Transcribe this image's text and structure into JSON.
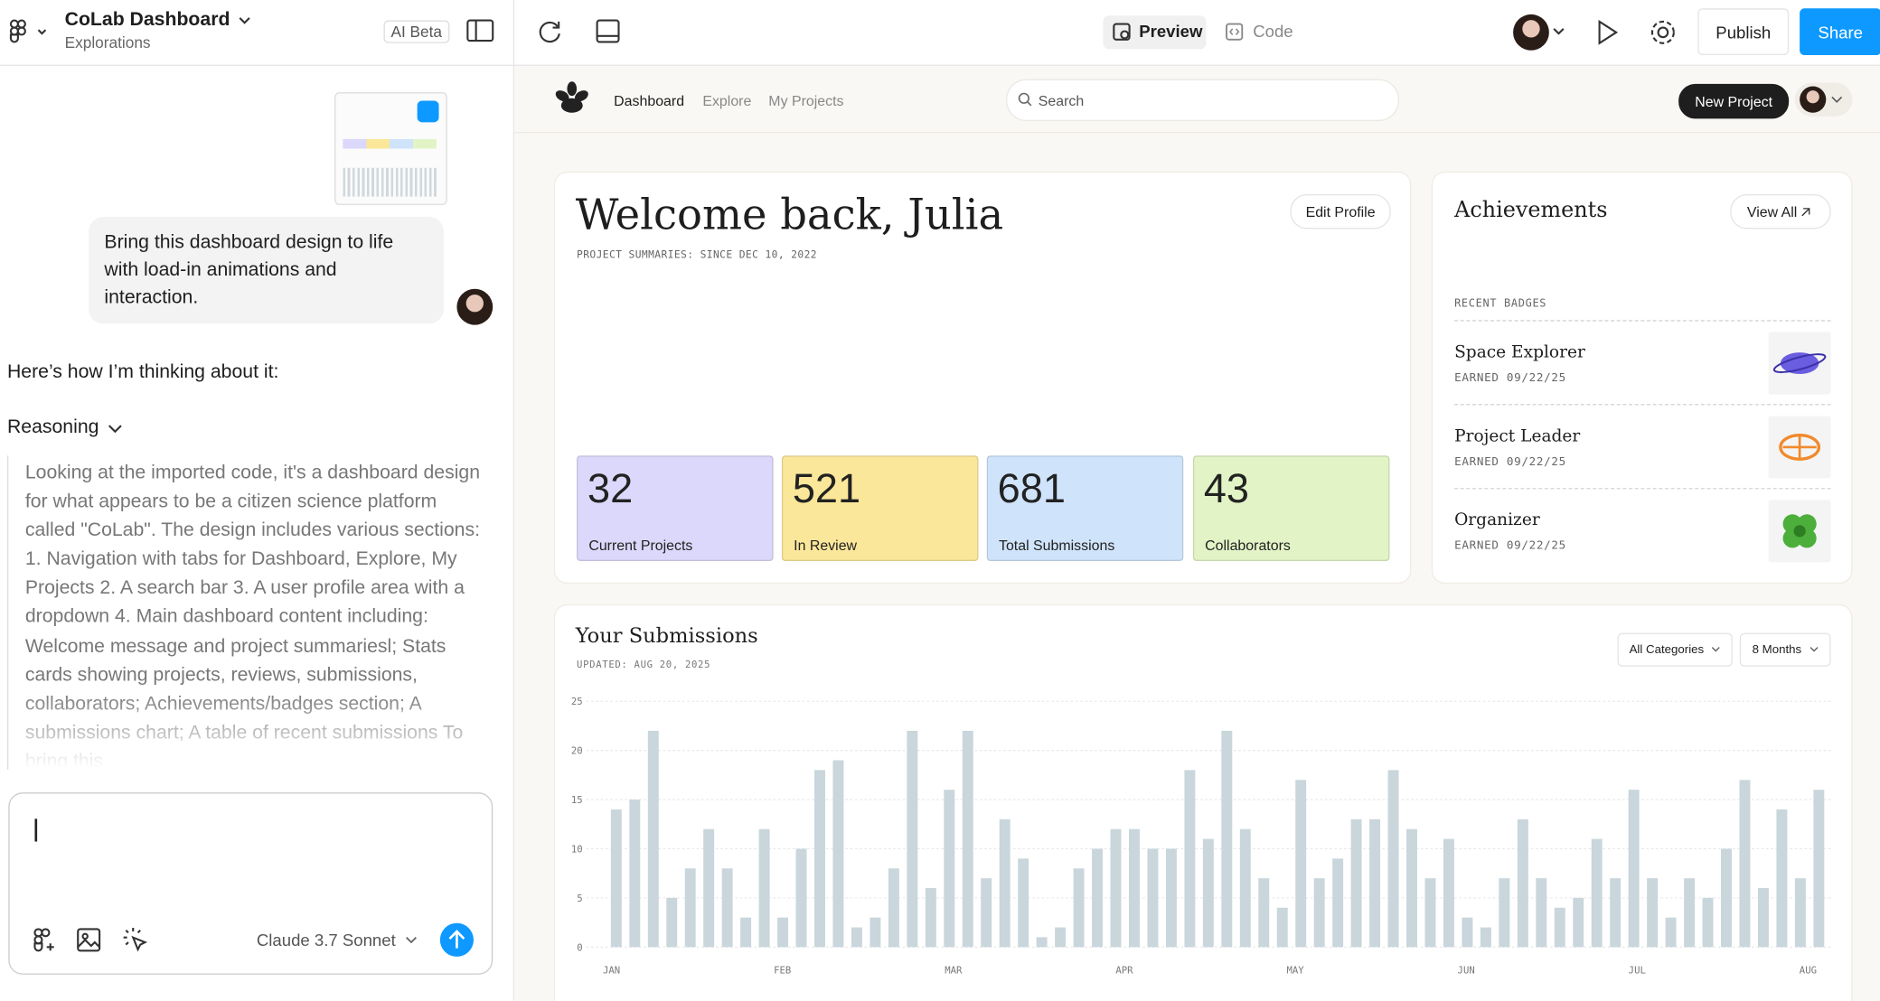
{
  "app_bar": {
    "file_title": "CoLab Dashboard",
    "file_subtitle": "Explorations",
    "ai_badge": "AI Beta",
    "preview": "Preview",
    "code": "Code",
    "publish": "Publish",
    "share": "Share"
  },
  "chat": {
    "user_message": "Bring this dashboard design to life with load-in animations and interaction.",
    "reply_intro": "Here’s how I’m thinking about it:",
    "reasoning_label": "Reasoning",
    "reasoning_text": "Looking at the imported code, it's a dashboard design for what appears to be a citizen science platform called \"CoLab\". The design includes various sections: 1. Navigation with tabs for Dashboard, Explore, My Projects 2. A search bar 3. A user profile area with a dropdown 4. Main dashboard content including: Welcome message and project summariesl; Stats cards showing projects, reviews, submissions, collaborators; Achievements/badges section; A submissions chart; A table of recent submissions To bring this",
    "model": "Claude 3.7 Sonnet"
  },
  "preview": {
    "nav": [
      "Dashboard",
      "Explore",
      "My Projects"
    ],
    "search_placeholder": "Search",
    "new_project": "New Project",
    "welcome": {
      "title": "Welcome back, Julia",
      "subtitle": "PROJECT SUMMARIES: SINCE DEC 10, 2022",
      "edit": "Edit Profile"
    },
    "stats": [
      {
        "value": 32,
        "label": "Current Projects",
        "color": "#dcd8fb"
      },
      {
        "value": 521,
        "label": "In Review",
        "color": "#fbe79a"
      },
      {
        "value": 681,
        "label": "Total Submissions",
        "color": "#cfe4fb"
      },
      {
        "value": 43,
        "label": "Collaborators",
        "color": "#e2f4c6"
      }
    ],
    "achievements": {
      "title": "Achievements",
      "view_all": "View All",
      "section": "RECENT BADGES",
      "badges": [
        {
          "name": "Space Explorer",
          "earned": "EARNED 09/22/25"
        },
        {
          "name": "Project Leader",
          "earned": "EARNED 09/22/25"
        },
        {
          "name": "Organizer",
          "earned": "EARNED 09/22/25"
        }
      ]
    }
  },
  "chart_data": {
    "type": "bar",
    "title": "Your Submissions",
    "subtitle": "UPDATED: AUG 20, 2025",
    "filters": [
      "All Categories",
      "8 Months"
    ],
    "month_labels": [
      "JAN",
      "FEB",
      "MAR",
      "APR",
      "MAY",
      "JUN",
      "JUL",
      "AUG"
    ],
    "values": [
      14,
      15,
      22,
      5,
      8,
      12,
      8,
      3,
      12,
      3,
      10,
      18,
      19,
      2,
      3,
      8,
      22,
      6,
      16,
      22,
      7,
      13,
      9,
      1,
      2,
      8,
      10,
      12,
      12,
      10,
      10,
      18,
      11,
      22,
      12,
      7,
      4,
      17,
      7,
      9,
      13,
      13,
      18,
      12,
      7,
      11,
      3,
      2,
      7,
      13,
      7,
      4,
      5,
      11,
      7,
      16,
      7,
      3,
      7,
      5,
      10,
      17,
      6,
      14,
      7,
      16
    ],
    "ylim": [
      0,
      25
    ],
    "yticks": [
      0,
      5,
      10,
      15,
      20,
      25
    ],
    "color": "#c9d6dc",
    "grid": true
  }
}
